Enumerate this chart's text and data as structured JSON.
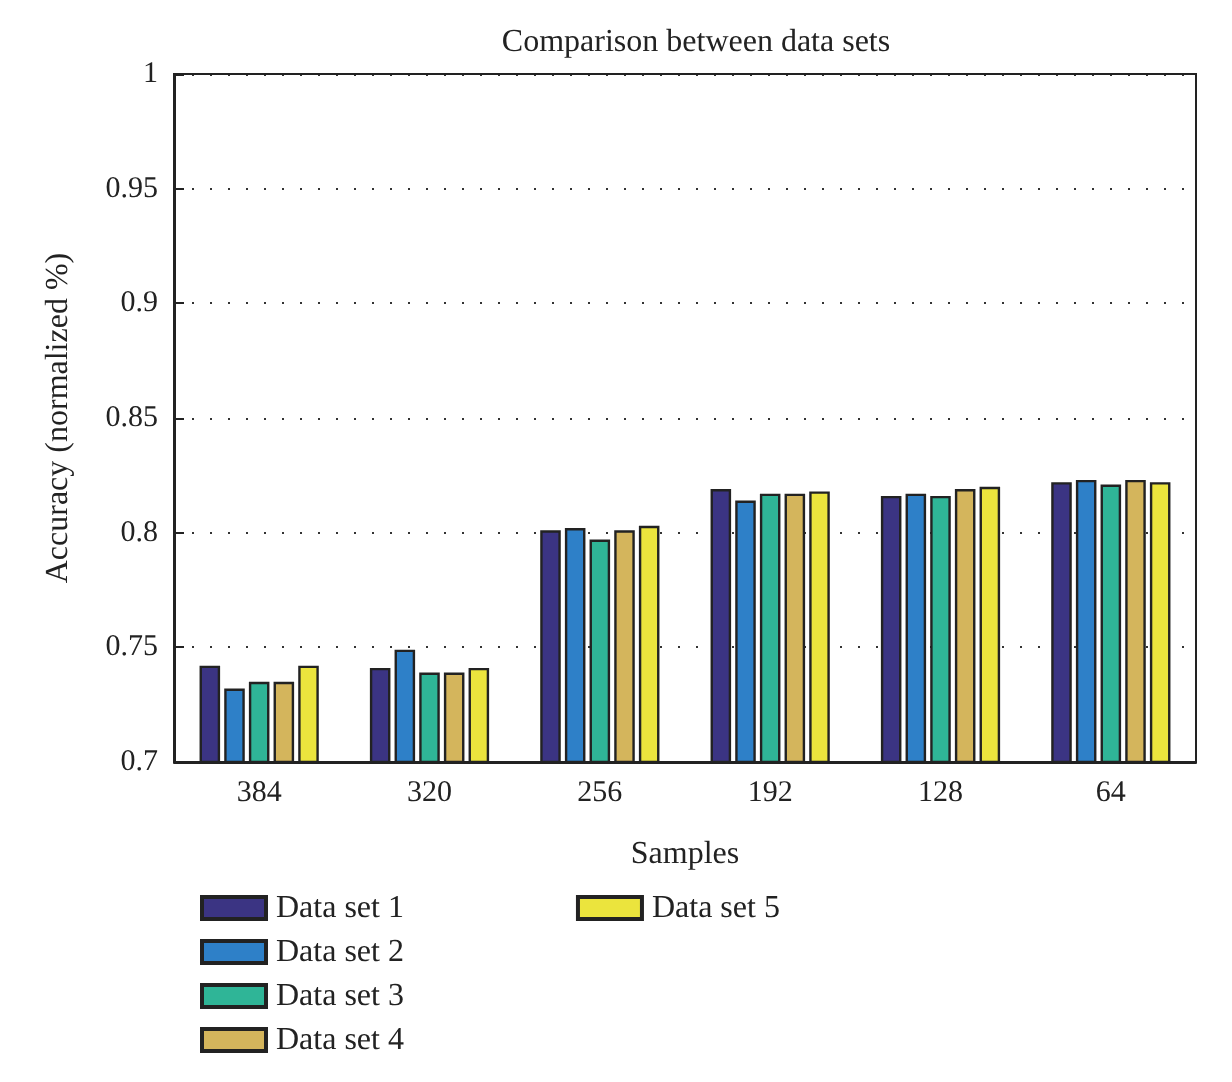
{
  "chart_data": {
    "type": "bar",
    "title": "Comparison between data sets",
    "xlabel": "Samples",
    "ylabel": "Accuracy (normalized %)",
    "categories": [
      "384",
      "320",
      "256",
      "192",
      "128",
      "64"
    ],
    "series": [
      {
        "name": "Data set 1",
        "color": "#3b3483",
        "values": [
          0.742,
          0.741,
          0.801,
          0.819,
          0.816,
          0.822
        ]
      },
      {
        "name": "Data set 2",
        "color": "#2e80c8",
        "values": [
          0.732,
          0.749,
          0.802,
          0.814,
          0.817,
          0.823
        ]
      },
      {
        "name": "Data set 3",
        "color": "#2fb597",
        "values": [
          0.735,
          0.739,
          0.797,
          0.817,
          0.816,
          0.821
        ]
      },
      {
        "name": "Data set 4",
        "color": "#d4b55c",
        "values": [
          0.735,
          0.739,
          0.801,
          0.817,
          0.819,
          0.823
        ]
      },
      {
        "name": "Data set 5",
        "color": "#ebe43d",
        "values": [
          0.742,
          0.741,
          0.803,
          0.818,
          0.82,
          0.822
        ]
      }
    ],
    "ylim": [
      0.7,
      1
    ],
    "yticks": [
      0.7,
      0.75,
      0.8,
      0.85,
      0.9,
      0.95,
      1
    ],
    "grid": "y",
    "legend": "bottom"
  }
}
